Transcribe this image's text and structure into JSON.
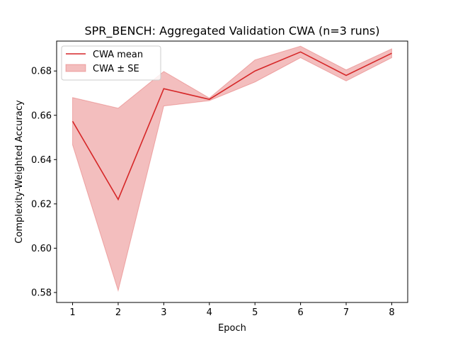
{
  "chart_data": {
    "type": "line",
    "title": "SPR_BENCH: Aggregated Validation CWA (n=3 runs)",
    "xlabel": "Epoch",
    "ylabel": "Complexity-Weighted Accuracy",
    "x": [
      1,
      2,
      3,
      4,
      5,
      6,
      7,
      8
    ],
    "xlim": [
      0.65,
      8.35
    ],
    "ylim": [
      0.5755,
      0.6935
    ],
    "x_ticks": [
      "1",
      "2",
      "3",
      "4",
      "5",
      "6",
      "7",
      "8"
    ],
    "y_ticks": [
      "0.58",
      "0.60",
      "0.62",
      "0.64",
      "0.66",
      "0.68"
    ],
    "y_tick_values": [
      0.58,
      0.6,
      0.62,
      0.64,
      0.66,
      0.68
    ],
    "series": [
      {
        "name": "CWA mean",
        "values": [
          0.6573,
          0.622,
          0.672,
          0.6672,
          0.68,
          0.6886,
          0.678,
          0.688
        ],
        "color": "#d62728"
      }
    ],
    "band": {
      "name": "CWA ± SE",
      "upper": [
        0.668,
        0.6632,
        0.6798,
        0.6678,
        0.685,
        0.6912,
        0.6805,
        0.69
      ],
      "lower": [
        0.6466,
        0.5808,
        0.6642,
        0.6666,
        0.675,
        0.686,
        0.6755,
        0.686
      ],
      "color": "#d62728"
    },
    "legend_position": "upper-left",
    "grid": false
  }
}
